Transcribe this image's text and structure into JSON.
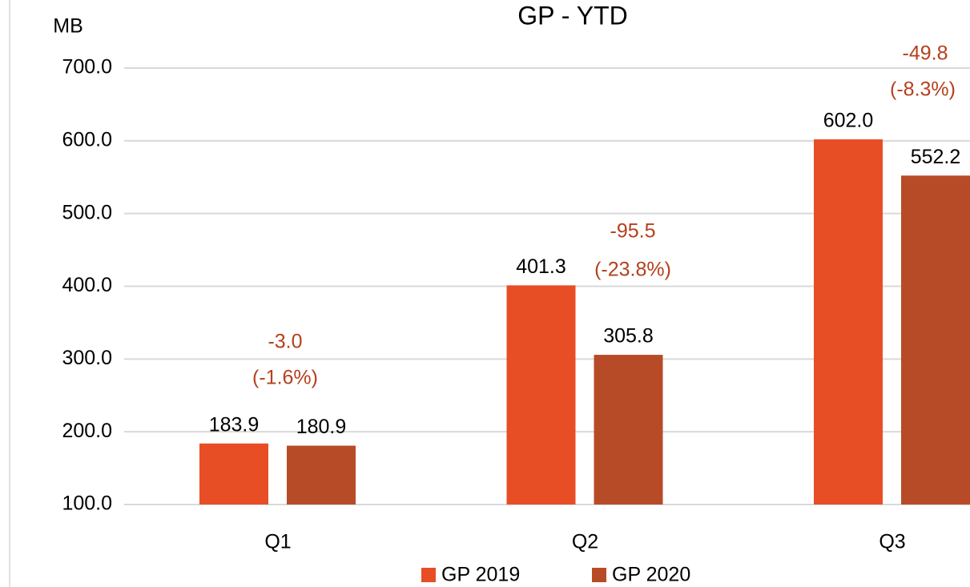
{
  "chart_data": {
    "type": "bar",
    "title": "GP - YTD",
    "y_label": "MB",
    "categories": [
      "Q1",
      "Q2",
      "Q3"
    ],
    "series": [
      {
        "name": "GP 2019",
        "color": "#e84e26",
        "values": [
          183.9,
          401.3,
          602.0
        ],
        "value_labels": [
          "183.9",
          "401.3",
          "602.0"
        ]
      },
      {
        "name": "GP 2020",
        "color": "#b84b27",
        "values": [
          180.9,
          305.8,
          552.2
        ],
        "value_labels": [
          "180.9",
          "305.8",
          "552.2"
        ]
      }
    ],
    "annotations": [
      {
        "diff": "-3.0",
        "pct": "(-1.6%)"
      },
      {
        "diff": "-95.5",
        "pct": "(-23.8%)"
      },
      {
        "diff": "-49.8",
        "pct": "(-8.3%)"
      }
    ],
    "ylim": [
      100,
      700
    ],
    "yticks": [
      {
        "value": 100,
        "label": "100.0"
      },
      {
        "value": 200,
        "label": "200.0"
      },
      {
        "value": 300,
        "label": "300.0"
      },
      {
        "value": 400,
        "label": "400.0"
      },
      {
        "value": 500,
        "label": "500.0"
      },
      {
        "value": 600,
        "label": "600.0"
      },
      {
        "value": 700,
        "label": "700.0"
      }
    ],
    "grid": true,
    "legend": "bottom"
  }
}
